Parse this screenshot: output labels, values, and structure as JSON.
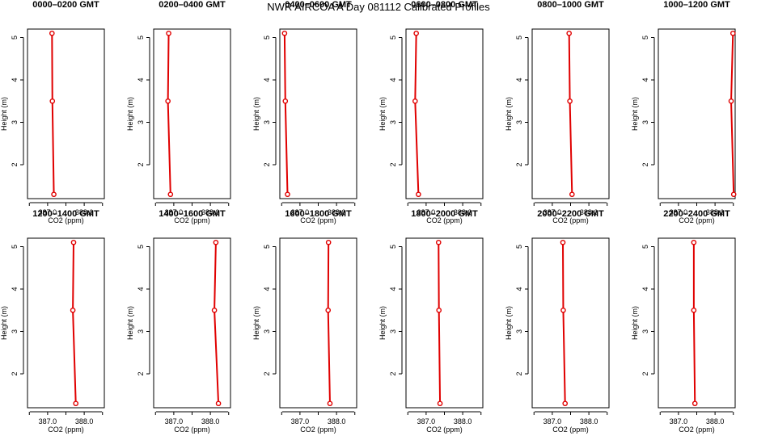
{
  "page": {
    "title": "NWR AIRCOA A  Day 081112  Calibrated Profiles"
  },
  "colors": {
    "series": "#e00000",
    "axis": "#000000"
  },
  "axis": {
    "xlabel": "CO2 (ppm)",
    "ylabel": "Height (m)",
    "xticks": [
      387.0,
      388.0
    ],
    "xtick_labels": [
      "387.0",
      "388.0"
    ],
    "yticks": [
      2,
      3,
      4,
      5
    ],
    "ytick_labels": [
      "2",
      "3",
      "4",
      "5"
    ]
  },
  "chart_data": [
    {
      "type": "line",
      "title": "0000–0200 GMT",
      "xlabel": "CO2 (ppm)",
      "ylabel": "Height (m)",
      "xlim": [
        386.45,
        388.55
      ],
      "ylim": [
        1.2,
        5.2
      ],
      "points": [
        {
          "x": 387.12,
          "y": 5.1
        },
        {
          "x": 387.13,
          "y": 3.5
        },
        {
          "x": 387.17,
          "y": 1.3
        }
      ]
    },
    {
      "type": "line",
      "title": "0200–0400 GMT",
      "xlabel": "CO2 (ppm)",
      "ylabel": "Height (m)",
      "xlim": [
        386.45,
        388.55
      ],
      "ylim": [
        1.2,
        5.2
      ],
      "points": [
        {
          "x": 386.86,
          "y": 5.1
        },
        {
          "x": 386.84,
          "y": 3.5
        },
        {
          "x": 386.91,
          "y": 1.3
        }
      ]
    },
    {
      "type": "line",
      "title": "0400–0600 GMT",
      "xlabel": "CO2 (ppm)",
      "ylabel": "Height (m)",
      "xlim": [
        386.45,
        388.55
      ],
      "ylim": [
        1.2,
        5.2
      ],
      "points": [
        {
          "x": 386.58,
          "y": 5.1
        },
        {
          "x": 386.6,
          "y": 3.5
        },
        {
          "x": 386.66,
          "y": 1.3
        }
      ]
    },
    {
      "type": "line",
      "title": "0600–0800 GMT",
      "xlabel": "CO2 (ppm)",
      "ylabel": "Height (m)",
      "xlim": [
        386.45,
        388.55
      ],
      "ylim": [
        1.2,
        5.2
      ],
      "points": [
        {
          "x": 386.73,
          "y": 5.1
        },
        {
          "x": 386.7,
          "y": 3.5
        },
        {
          "x": 386.79,
          "y": 1.3
        }
      ]
    },
    {
      "type": "line",
      "title": "0800–1000 GMT",
      "xlabel": "CO2 (ppm)",
      "ylabel": "Height (m)",
      "xlim": [
        386.45,
        388.55
      ],
      "ylim": [
        1.2,
        5.2
      ],
      "points": [
        {
          "x": 387.46,
          "y": 5.1
        },
        {
          "x": 387.48,
          "y": 3.5
        },
        {
          "x": 387.54,
          "y": 1.3
        }
      ]
    },
    {
      "type": "line",
      "title": "1000–1200 GMT",
      "xlabel": "CO2 (ppm)",
      "ylabel": "Height (m)",
      "xlim": [
        386.45,
        388.55
      ],
      "ylim": [
        1.2,
        5.2
      ],
      "points": [
        {
          "x": 388.49,
          "y": 5.1
        },
        {
          "x": 388.44,
          "y": 3.5
        },
        {
          "x": 388.51,
          "y": 1.3
        }
      ]
    },
    {
      "type": "line",
      "title": "1200–1400 GMT",
      "xlabel": "CO2 (ppm)",
      "ylabel": "Height (m)",
      "xlim": [
        386.45,
        388.55
      ],
      "ylim": [
        1.2,
        5.2
      ],
      "points": [
        {
          "x": 387.71,
          "y": 5.1
        },
        {
          "x": 387.69,
          "y": 3.5
        },
        {
          "x": 387.77,
          "y": 1.3
        }
      ]
    },
    {
      "type": "line",
      "title": "1400–1600 GMT",
      "xlabel": "CO2 (ppm)",
      "ylabel": "Height (m)",
      "xlim": [
        386.45,
        388.55
      ],
      "ylim": [
        1.2,
        5.2
      ],
      "points": [
        {
          "x": 388.15,
          "y": 5.1
        },
        {
          "x": 388.11,
          "y": 3.5
        },
        {
          "x": 388.22,
          "y": 1.3
        }
      ]
    },
    {
      "type": "line",
      "title": "1600–1800 GMT",
      "xlabel": "CO2 (ppm)",
      "ylabel": "Height (m)",
      "xlim": [
        386.45,
        388.55
      ],
      "ylim": [
        1.2,
        5.2
      ],
      "points": [
        {
          "x": 387.78,
          "y": 5.1
        },
        {
          "x": 387.77,
          "y": 3.5
        },
        {
          "x": 387.82,
          "y": 1.3
        }
      ]
    },
    {
      "type": "line",
      "title": "1800–2000 GMT",
      "xlabel": "CO2 (ppm)",
      "ylabel": "Height (m)",
      "xlim": [
        386.45,
        388.55
      ],
      "ylim": [
        1.2,
        5.2
      ],
      "points": [
        {
          "x": 387.34,
          "y": 5.1
        },
        {
          "x": 387.35,
          "y": 3.5
        },
        {
          "x": 387.38,
          "y": 1.3
        }
      ]
    },
    {
      "type": "line",
      "title": "2000–2200 GMT",
      "xlabel": "CO2 (ppm)",
      "ylabel": "Height (m)",
      "xlim": [
        386.45,
        388.55
      ],
      "ylim": [
        1.2,
        5.2
      ],
      "points": [
        {
          "x": 387.29,
          "y": 5.1
        },
        {
          "x": 387.3,
          "y": 3.5
        },
        {
          "x": 387.35,
          "y": 1.3
        }
      ]
    },
    {
      "type": "line",
      "title": "2200–2400 GMT",
      "xlabel": "CO2 (ppm)",
      "ylabel": "Height (m)",
      "xlim": [
        386.45,
        388.55
      ],
      "ylim": [
        1.2,
        5.2
      ],
      "points": [
        {
          "x": 387.42,
          "y": 5.1
        },
        {
          "x": 387.42,
          "y": 3.5
        },
        {
          "x": 387.45,
          "y": 1.3
        }
      ]
    }
  ]
}
